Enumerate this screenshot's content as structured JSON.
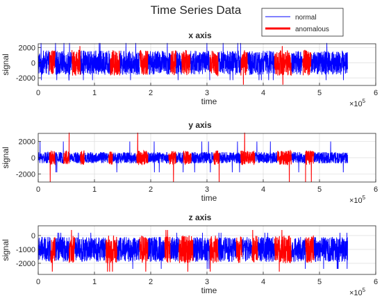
{
  "figure": {
    "title": "Time Series Data",
    "legend": {
      "placement": "top-right",
      "items": [
        {
          "label": "normal",
          "color": "#0000ff"
        },
        {
          "label": "anomalous",
          "color": "#ff0000"
        }
      ]
    },
    "colors": {
      "normal": "#0000ff",
      "anomalous": "#ff0000",
      "grid": "#dcdcdc",
      "axis": "#262626"
    },
    "axis_exponent": {
      "base": "×10",
      "exp": "5"
    }
  },
  "chart_data": [
    {
      "type": "line",
      "title": "x axis",
      "xlabel": "time",
      "ylabel": "signal",
      "xlim": [
        0,
        600000
      ],
      "ylim": [
        -3000,
        2500
      ],
      "xticks": [
        0,
        100000,
        200000,
        300000,
        400000,
        500000,
        600000
      ],
      "xtick_labels": [
        "0",
        "1",
        "2",
        "3",
        "4",
        "5",
        "6"
      ],
      "yticks": [
        -2000,
        0,
        2000
      ],
      "ytick_labels": [
        "-2000",
        "0",
        "2000"
      ],
      "grid": true,
      "signal_extent": [
        0,
        550000
      ],
      "series": [
        {
          "name": "normal",
          "baseline": 0,
          "amplitude": 1600,
          "peak_min": -2300,
          "peak_max": 2600
        },
        {
          "name": "anomalous",
          "baseline": 0,
          "amplitude": 1700,
          "peak_min": -2900,
          "peak_max": 2200,
          "segments": [
            [
              20000,
              30000
            ],
            [
              60000,
              75000
            ],
            [
              128000,
              145000
            ],
            [
              180000,
              195000
            ],
            [
              235000,
              245000
            ],
            [
              255000,
              270000
            ],
            [
              305000,
              320000
            ],
            [
              360000,
              372000
            ],
            [
              420000,
              450000
            ],
            [
              470000,
              485000
            ]
          ]
        }
      ]
    },
    {
      "type": "line",
      "title": "y axis",
      "xlabel": "time",
      "ylabel": "signal",
      "xlim": [
        0,
        600000
      ],
      "ylim": [
        -3000,
        3000
      ],
      "xticks": [
        0,
        100000,
        200000,
        300000,
        400000,
        500000,
        600000
      ],
      "xtick_labels": [
        "0",
        "1",
        "2",
        "3",
        "4",
        "5",
        "6"
      ],
      "yticks": [
        -2000,
        0,
        2000
      ],
      "ytick_labels": [
        "-2000",
        "0",
        "2000"
      ],
      "grid": true,
      "signal_extent": [
        0,
        550000
      ],
      "series": [
        {
          "name": "normal",
          "baseline": 0,
          "amplitude": 700,
          "peak_min": -1800,
          "peak_max": 2000
        },
        {
          "name": "anomalous",
          "baseline": 0,
          "amplitude": 900,
          "peak_min": -3000,
          "peak_max": 3100,
          "segments": [
            [
              20000,
              30000
            ],
            [
              45000,
              55000
            ],
            [
              75000,
              82000
            ],
            [
              125000,
              132000
            ],
            [
              175000,
              195000
            ],
            [
              232000,
              245000
            ],
            [
              258000,
              272000
            ],
            [
              312000,
              322000
            ],
            [
              360000,
              385000
            ],
            [
              425000,
              450000
            ],
            [
              475000,
              490000
            ]
          ]
        }
      ]
    },
    {
      "type": "line",
      "title": "z axis",
      "xlabel": "time",
      "ylabel": "signal",
      "xlim": [
        0,
        600000
      ],
      "ylim": [
        -2800,
        700
      ],
      "xticks": [
        0,
        100000,
        200000,
        300000,
        400000,
        500000,
        600000
      ],
      "xtick_labels": [
        "0",
        "1",
        "2",
        "3",
        "4",
        "5",
        "6"
      ],
      "yticks": [
        -2000,
        -1000,
        0
      ],
      "ytick_labels": [
        "-2000",
        "-1000",
        "0"
      ],
      "grid": true,
      "signal_extent": [
        0,
        550000
      ],
      "series": [
        {
          "name": "normal",
          "baseline": -1000,
          "amplitude": 900,
          "peak_min": -2400,
          "peak_max": 200
        },
        {
          "name": "anomalous",
          "baseline": -1000,
          "amplitude": 1000,
          "peak_min": -2600,
          "peak_max": 400,
          "segments": [
            [
              22000,
              30000
            ],
            [
              55000,
              65000
            ],
            [
              120000,
              140000
            ],
            [
              180000,
              195000
            ],
            [
              225000,
              235000
            ],
            [
              250000,
              275000
            ],
            [
              305000,
              320000
            ],
            [
              352000,
              362000
            ],
            [
              380000,
              390000
            ],
            [
              420000,
              450000
            ],
            [
              475000,
              490000
            ]
          ]
        }
      ]
    }
  ]
}
